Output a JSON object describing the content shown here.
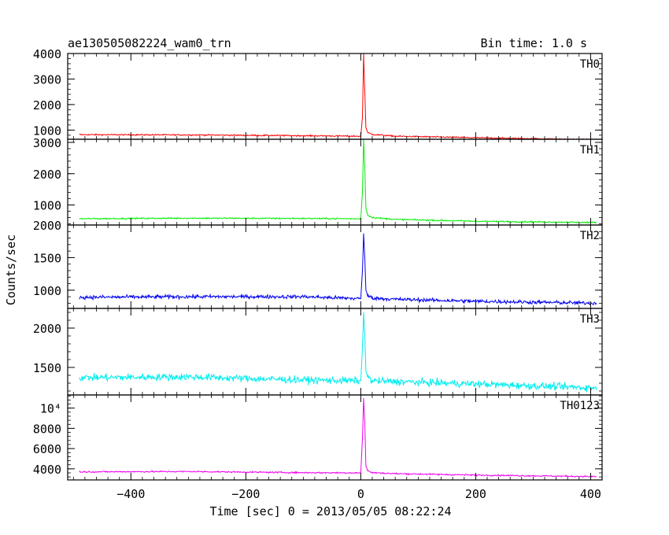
{
  "header": {
    "title": "ae130505082224_wam0_trn",
    "bin_time": "Bin time: 1.0 s"
  },
  "chart_data": {
    "type": "line",
    "xlabel": "Time [sec] 0 = 2013/05/05 08:22:24",
    "ylabel": "Counts/sec",
    "xlim": [
      -510,
      420
    ],
    "x_ticks": [
      -400,
      -200,
      0,
      200,
      400
    ],
    "x_tick_labels": [
      "−400",
      "−200",
      "0",
      "200",
      "400"
    ],
    "panels": [
      {
        "name": "TH0",
        "color": "#ff0000",
        "ylim": [
          640,
          4000
        ],
        "y_ticks": [
          1000,
          2000,
          3000,
          4000
        ],
        "y_tick_labels": [
          "1000",
          "2000",
          "3000",
          "4000"
        ],
        "x": [
          -490,
          -300,
          -100,
          0,
          3,
          5,
          7,
          9,
          12,
          20,
          60,
          200,
          410
        ],
        "y": [
          820,
          810,
          780,
          760,
          1500,
          4000,
          2500,
          1100,
          900,
          830,
          760,
          700,
          620
        ]
      },
      {
        "name": "TH1",
        "color": "#00ee00",
        "ylim": [
          360,
          3100
        ],
        "y_ticks": [
          1000,
          2000,
          3000
        ],
        "y_tick_labels": [
          "1000",
          "2000",
          "3000"
        ],
        "x": [
          -490,
          -300,
          -100,
          0,
          3,
          5,
          7,
          9,
          12,
          20,
          60,
          200,
          410
        ],
        "y": [
          560,
          580,
          570,
          560,
          1400,
          3100,
          2200,
          900,
          680,
          600,
          540,
          480,
          440
        ]
      },
      {
        "name": "TH2",
        "color": "#0000ee",
        "ylim": [
          720,
          2000
        ],
        "y_ticks": [
          1000,
          1500,
          2000
        ],
        "y_tick_labels": [
          "1000",
          "1500",
          "2000"
        ],
        "x": [
          -490,
          -300,
          -100,
          0,
          3,
          5,
          7,
          9,
          12,
          20,
          60,
          200,
          410
        ],
        "y": [
          890,
          900,
          900,
          870,
          1300,
          1870,
          1500,
          1000,
          920,
          880,
          860,
          830,
          800
        ]
      },
      {
        "name": "TH3",
        "color": "#00eeee",
        "ylim": [
          1150,
          2250
        ],
        "y_ticks": [
          1500,
          2000
        ],
        "y_tick_labels": [
          "1500",
          "2000"
        ],
        "x": [
          -490,
          -300,
          -100,
          0,
          3,
          5,
          7,
          9,
          12,
          20,
          60,
          200,
          410
        ],
        "y": [
          1370,
          1380,
          1340,
          1330,
          1750,
          2200,
          1900,
          1450,
          1380,
          1330,
          1320,
          1290,
          1240
        ]
      },
      {
        "name": "TH0123",
        "color": "#ee00ee",
        "ylim": [
          2900,
          11300
        ],
        "y_ticks": [
          4000,
          6000,
          8000,
          10000
        ],
        "y_tick_labels": [
          "4000",
          "6000",
          "8000",
          "10⁴"
        ],
        "x": [
          -490,
          -300,
          -100,
          0,
          3,
          5,
          7,
          9,
          12,
          20,
          60,
          200,
          410
        ],
        "y": [
          3700,
          3730,
          3620,
          3600,
          7000,
          11000,
          8500,
          4300,
          3800,
          3620,
          3520,
          3380,
          3230
        ]
      }
    ]
  }
}
